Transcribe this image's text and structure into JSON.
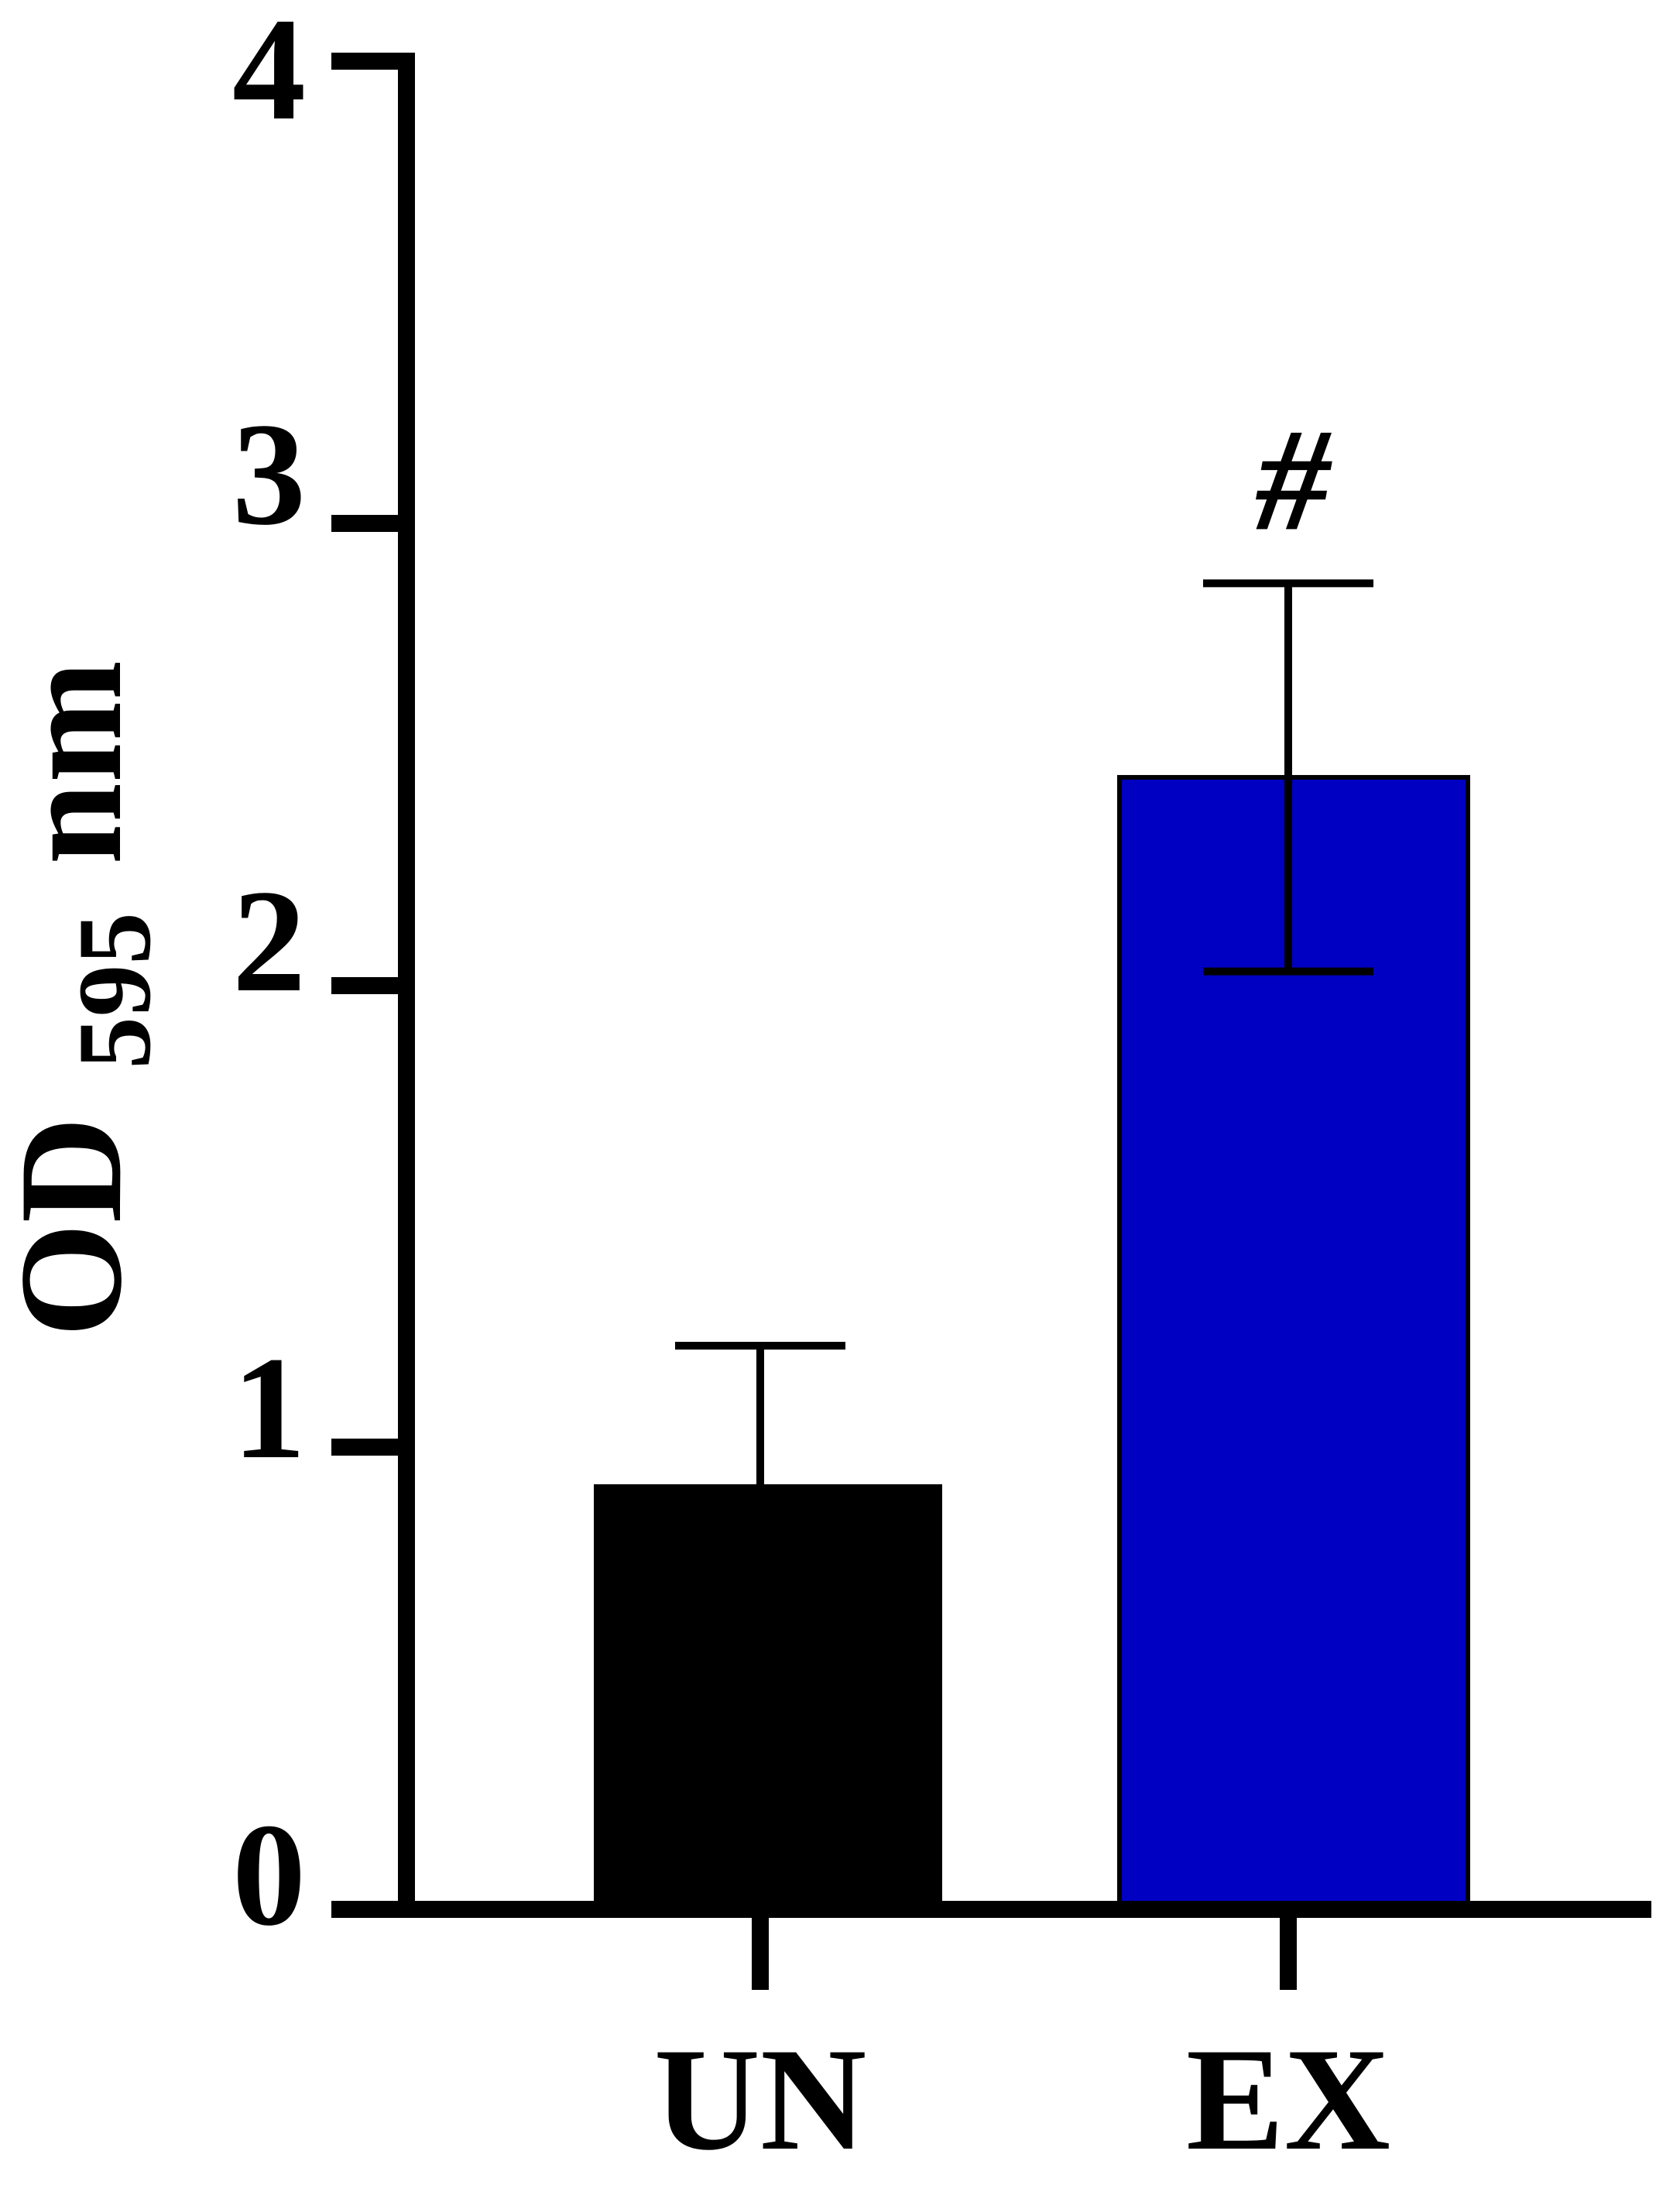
{
  "chart_data": {
    "type": "bar",
    "categories": [
      "UN",
      "EX"
    ],
    "values": [
      0.92,
      2.45
    ],
    "errors": [
      0.3,
      0.42
    ],
    "colors": [
      "#000000",
      "#0000c2"
    ],
    "annotations": [
      "",
      "#"
    ],
    "ylabel": {
      "main": "OD",
      "sub": "595",
      "unit": "nm"
    },
    "ylim": [
      0,
      4
    ],
    "yticks": [
      "0",
      "1",
      "2",
      "3",
      "4"
    ],
    "grid": false,
    "legend": "none"
  }
}
